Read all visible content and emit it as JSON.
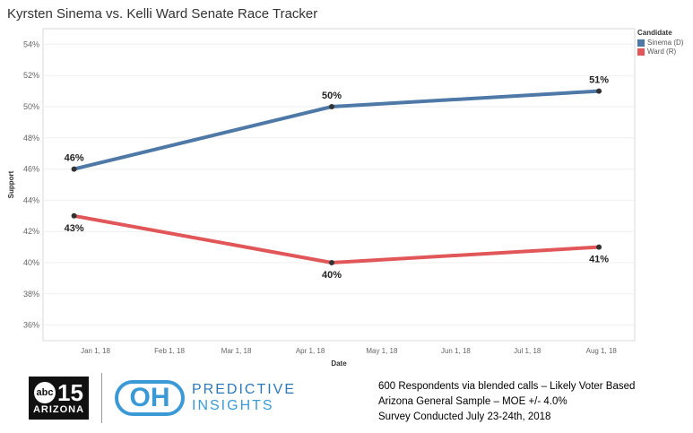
{
  "title": "Kyrsten Sinema vs. Kelli Ward Senate Race Tracker",
  "legend": {
    "title": "Candidate",
    "items": [
      {
        "label": "Sinema (D)",
        "color": "#4e79a7"
      },
      {
        "label": "Ward (R)",
        "color": "#e15759"
      }
    ]
  },
  "chart_data": {
    "type": "line",
    "xlabel": "Date",
    "ylabel": "Support",
    "ylim": [
      0.35,
      0.55
    ],
    "y_ticks": [
      "36%",
      "38%",
      "40%",
      "42%",
      "44%",
      "46%",
      "48%",
      "50%",
      "52%",
      "54%"
    ],
    "x_ticks": [
      "Jan 1, 18",
      "Feb 1, 18",
      "Mar 1, 18",
      "Apr 1, 18",
      "May 1, 18",
      "Jun 1, 18",
      "Jul 1, 18",
      "Aug 1, 18"
    ],
    "x_tick_dates": [
      "2018-01-01",
      "2018-02-01",
      "2018-03-01",
      "2018-04-01",
      "2018-05-01",
      "2018-06-01",
      "2018-07-01",
      "2018-08-01"
    ],
    "xlim": [
      "2017-12-10",
      "2018-08-15"
    ],
    "grid": true,
    "legend_position": "top-right",
    "series": [
      {
        "name": "Sinema (D)",
        "color": "#4e79a7",
        "points": [
          {
            "date": "2017-12-23",
            "value": 0.46,
            "label": "46%"
          },
          {
            "date": "2018-04-10",
            "value": 0.5,
            "label": "50%"
          },
          {
            "date": "2018-07-31",
            "value": 0.51,
            "label": "51%"
          }
        ]
      },
      {
        "name": "Ward (R)",
        "color": "#e15759",
        "points": [
          {
            "date": "2017-12-23",
            "value": 0.43,
            "label": "43%"
          },
          {
            "date": "2018-04-10",
            "value": 0.4,
            "label": "40%"
          },
          {
            "date": "2018-07-31",
            "value": 0.41,
            "label": "41%"
          }
        ]
      }
    ]
  },
  "logos": {
    "abc_channel": "abc",
    "abc_number": "15",
    "abc_region": "ARIZONA",
    "oh_mark": "OH",
    "predictive_line1": "PREDICTIVE",
    "predictive_line2": "INSIGHTS"
  },
  "notes": {
    "line1": "600 Respondents via blended calls – Likely Voter Based",
    "line2": "Arizona General Sample – MOE +/- 4.0%",
    "line3": "Survey Conducted July 23-24th, 2018"
  }
}
